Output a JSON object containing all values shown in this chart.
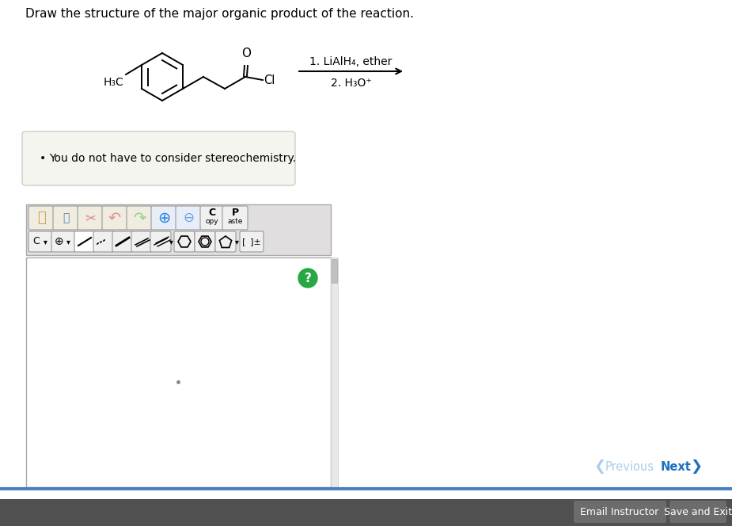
{
  "title": "Draw the structure of the major organic product of the reaction.",
  "reagent_line1": "1. LiAlH₄, ether",
  "reagent_line2": "2. H₃O⁺",
  "note": "You do not have to consider stereochemistry.",
  "bg_color": "#ffffff",
  "text_color": "#000000",
  "toolbar_bg": "#e0e0e0",
  "canvas_bg": "#ffffff",
  "bottom_bar_color": "#4a80c0",
  "previous_color": "#aaccee",
  "next_color": "#1a70c0",
  "btn_gray": "#808080"
}
